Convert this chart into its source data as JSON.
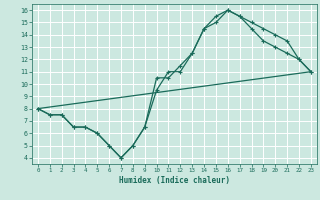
{
  "title": "",
  "xlabel": "Humidex (Indice chaleur)",
  "bg_color": "#cce8e0",
  "grid_color": "#ffffff",
  "line_color": "#1a6b5a",
  "xlim": [
    -0.5,
    23.5
  ],
  "ylim": [
    3.5,
    16.5
  ],
  "xticks": [
    0,
    1,
    2,
    3,
    4,
    5,
    6,
    7,
    8,
    9,
    10,
    11,
    12,
    13,
    14,
    15,
    16,
    17,
    18,
    19,
    20,
    21,
    22,
    23
  ],
  "yticks": [
    4,
    5,
    6,
    7,
    8,
    9,
    10,
    11,
    12,
    13,
    14,
    15,
    16
  ],
  "line1_x": [
    0,
    1,
    2,
    3,
    4,
    5,
    6,
    7,
    8,
    9,
    10,
    11,
    12,
    13,
    14,
    15,
    16,
    17,
    18,
    19,
    20,
    21,
    22,
    23
  ],
  "line1_y": [
    8,
    7.5,
    7.5,
    6.5,
    6.5,
    6.0,
    5.0,
    4.0,
    5.0,
    6.5,
    9.5,
    11.0,
    11.0,
    12.5,
    14.5,
    15.0,
    16.0,
    15.5,
    15.0,
    14.5,
    14.0,
    13.5,
    12.0,
    11.0
  ],
  "line2_x": [
    0,
    1,
    2,
    3,
    4,
    5,
    6,
    7,
    8,
    9,
    10,
    11,
    12,
    13,
    14,
    15,
    16,
    17,
    18,
    19,
    20,
    21,
    22,
    23
  ],
  "line2_y": [
    8,
    7.5,
    7.5,
    6.5,
    6.5,
    6.0,
    5.0,
    4.0,
    5.0,
    6.5,
    10.5,
    10.5,
    11.5,
    12.5,
    14.5,
    15.5,
    16.0,
    15.5,
    14.5,
    13.5,
    13.0,
    12.5,
    12.0,
    11.0
  ],
  "line3_x": [
    0,
    23
  ],
  "line3_y": [
    8,
    11
  ]
}
